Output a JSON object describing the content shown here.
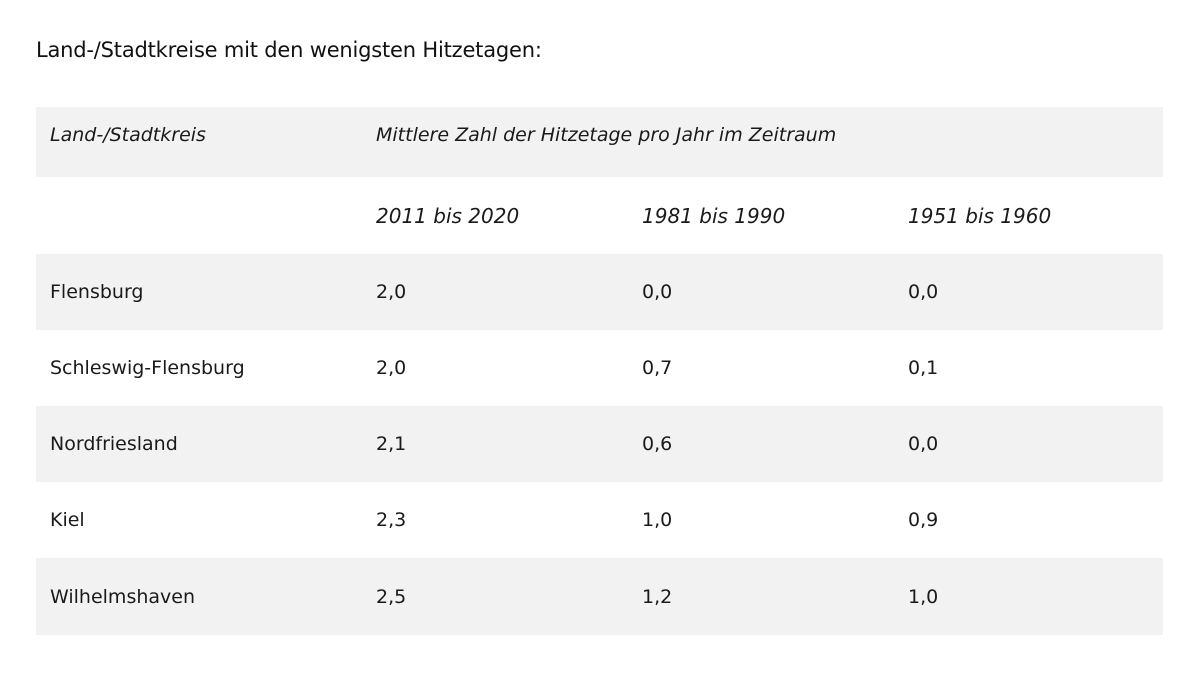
{
  "heading": "Land-/Stadtkreise mit den wenigsten Hitzetagen:",
  "table": {
    "col_header_region": "Land-/Stadtkreis",
    "col_header_group": "Mittlere Zahl der Hitzetage pro Jahr im Zeitraum",
    "periods": [
      "2011 bis 2020",
      "1981 bis 1990",
      "1951 bis 1960"
    ],
    "rows": [
      {
        "name": "Flensburg",
        "values": [
          "2,0",
          "0,0",
          "0,0"
        ]
      },
      {
        "name": "Schleswig-Flensburg",
        "values": [
          "2,0",
          "0,7",
          "0,1"
        ]
      },
      {
        "name": "Nordfriesland",
        "values": [
          "2,1",
          "0,6",
          "0,0"
        ]
      },
      {
        "name": "Kiel",
        "values": [
          "2,3",
          "1,0",
          "0,9"
        ]
      },
      {
        "name": "Wilhelmshaven",
        "values": [
          "2,5",
          "1,2",
          "1,0"
        ]
      }
    ]
  }
}
